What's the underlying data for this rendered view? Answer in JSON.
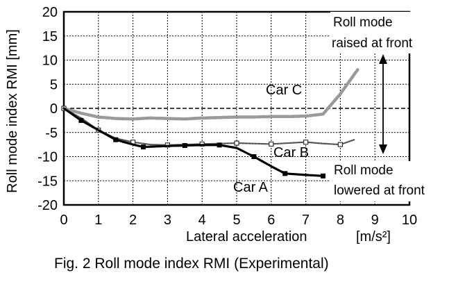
{
  "chart_data": {
    "type": "line",
    "xlabel": "Lateral acceleration",
    "xunit": "[m/s²]",
    "ylabel": "Roll mode index RMI [mm]",
    "xlim": [
      0,
      10
    ],
    "ylim": [
      -20,
      20
    ],
    "xticks": [
      "0",
      "1",
      "2",
      "3",
      "4",
      "5",
      "6",
      "7",
      "8",
      "9",
      "10"
    ],
    "yticks": [
      "20",
      "15",
      "10",
      "5",
      "0",
      "-5",
      "-10",
      "-15",
      "-20"
    ],
    "grid": true,
    "series": [
      {
        "name": "Car A",
        "color": "#000000",
        "x": [
          0,
          0.5,
          1.0,
          1.5,
          2.0,
          2.3,
          3.0,
          3.5,
          4.0,
          4.5,
          5.0,
          5.5,
          6.0,
          6.4,
          7.0,
          7.5
        ],
        "y": [
          0,
          -2.5,
          -4.5,
          -6.5,
          -7.5,
          -8.0,
          -7.8,
          -7.7,
          -7.6,
          -7.6,
          -8.2,
          -10.0,
          -12.0,
          -13.5,
          -13.8,
          -14.0
        ]
      },
      {
        "name": "Car B",
        "color": "#555555",
        "x": [
          0,
          0.5,
          1.0,
          1.5,
          2.0,
          2.5,
          3.0,
          3.5,
          4.0,
          4.5,
          5.0,
          5.5,
          6.0,
          6.5,
          7.0,
          7.5,
          8.0,
          8.4
        ],
        "y": [
          0,
          -2.0,
          -4.5,
          -6.2,
          -7.0,
          -7.5,
          -7.6,
          -7.5,
          -7.4,
          -7.3,
          -7.2,
          -7.3,
          -7.4,
          -7.2,
          -7.0,
          -7.3,
          -7.5,
          -6.5
        ]
      },
      {
        "name": "Car C",
        "color": "#9a9a9a",
        "x": [
          0,
          0.5,
          1.0,
          1.5,
          2.0,
          2.5,
          3.0,
          3.5,
          4.0,
          4.5,
          5.0,
          5.5,
          6.0,
          6.5,
          7.0,
          7.5,
          8.0,
          8.5
        ],
        "y": [
          0,
          -1.0,
          -1.8,
          -2.1,
          -2.2,
          -2.0,
          -2.1,
          -2.2,
          -2.0,
          -1.9,
          -1.8,
          -1.8,
          -1.7,
          -1.7,
          -1.6,
          -1.2,
          3.0,
          8.0
        ]
      }
    ],
    "annotations": {
      "car_c": "Car C",
      "car_b": "Car  B",
      "car_a": "Car  A",
      "raised_line1": "Roll mode",
      "raised_line2": "raised at front",
      "lowered_line1": "Roll mode",
      "lowered_line2": "lowered at front"
    },
    "caption": "Fig. 2  Roll mode index RMI (Experimental)"
  }
}
